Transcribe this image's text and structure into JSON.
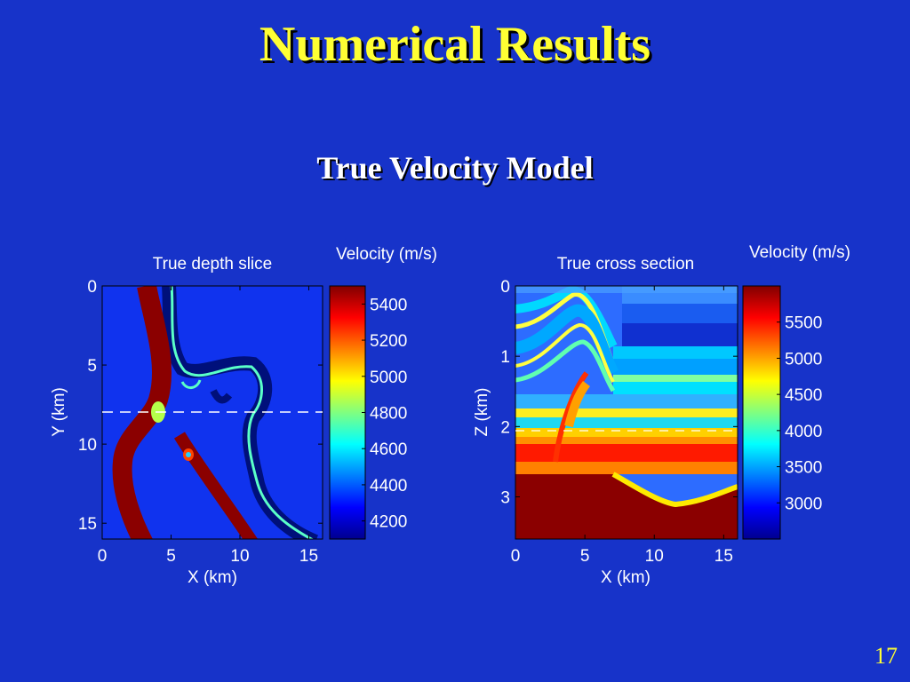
{
  "slide": {
    "title": "Numerical Results",
    "subtitle": "True Velocity Model",
    "page_number": "17"
  },
  "colors": {
    "background": "#1733c9",
    "title": "#ffff33",
    "velocity_low": "#0e2df0",
    "velocity_high": "#8b0000"
  },
  "chart_data": [
    {
      "type": "heatmap",
      "title": "True depth slice",
      "xlabel": "X (km)",
      "ylabel": "Y (km)",
      "xlim": [
        0,
        16
      ],
      "ylim": [
        0,
        16
      ],
      "y_inverted": true,
      "xticks": [
        "0",
        "5",
        "10",
        "15"
      ],
      "yticks": [
        "0",
        "5",
        "10",
        "15"
      ],
      "reference_line_y": 8.2,
      "colorbar": {
        "label": "Velocity (m/s)",
        "range": [
          4100,
          5500
        ],
        "ticks": [
          "5400",
          "5200",
          "5000",
          "4800",
          "4600",
          "4400",
          "4200"
        ]
      }
    },
    {
      "type": "heatmap",
      "title": "True cross section",
      "xlabel": "X (km)",
      "ylabel": "Z (km)",
      "xlim": [
        0,
        16
      ],
      "ylim": [
        0,
        3.6
      ],
      "y_inverted": true,
      "xticks": [
        "0",
        "5",
        "10",
        "15"
      ],
      "yticks": [
        "0",
        "1",
        "2",
        "3"
      ],
      "reference_line_z": 2.1,
      "colorbar": {
        "label": "Velocity (m/s)",
        "range": [
          2500,
          6000
        ],
        "ticks": [
          "5500",
          "5000",
          "4500",
          "4000",
          "3500",
          "3000"
        ]
      }
    }
  ]
}
